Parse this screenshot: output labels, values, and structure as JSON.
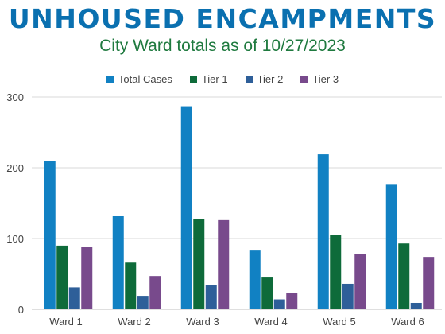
{
  "title": "UNHOUSED ENCAMPMENTS",
  "subtitle": "City Ward totals as of 10/27/2023",
  "chart_data": {
    "type": "bar",
    "categories": [
      "Ward 1",
      "Ward 2",
      "Ward 3",
      "Ward 4",
      "Ward 5",
      "Ward 6"
    ],
    "series": [
      {
        "name": "Total Cases",
        "color": "#1181c3",
        "values": [
          209,
          132,
          287,
          83,
          219,
          176
        ]
      },
      {
        "name": "Tier 1",
        "color": "#0e6b3a",
        "values": [
          90,
          66,
          127,
          46,
          105,
          93
        ]
      },
      {
        "name": "Tier 2",
        "color": "#2e5f99",
        "values": [
          31,
          19,
          34,
          14,
          36,
          9
        ]
      },
      {
        "name": "Tier 3",
        "color": "#784a8c",
        "values": [
          88,
          47,
          126,
          23,
          78,
          74
        ]
      }
    ],
    "ylim": [
      0,
      300
    ],
    "yticks": [
      "0",
      "100",
      "200",
      "300"
    ],
    "grid": true,
    "legend_position": "top"
  }
}
